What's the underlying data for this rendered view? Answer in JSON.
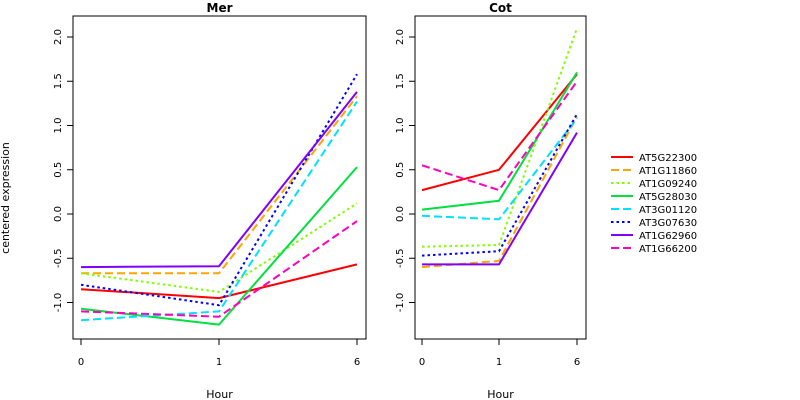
{
  "chart_data": [
    {
      "type": "line",
      "title": "Mer",
      "xlabel": "Hour",
      "ylabel": "centered expression",
      "x": [
        "0",
        "1",
        "6"
      ],
      "ylim": [
        -1.35,
        2.1
      ],
      "yticks": [
        "-1.0",
        "-0.5",
        "0.0",
        "0.5",
        "1.0",
        "1.5",
        "2.0"
      ],
      "series": [
        {
          "name": "AT5G22300",
          "values": [
            -0.85,
            -0.95,
            -0.57
          ],
          "color": "#ff0000",
          "dash": "solid"
        },
        {
          "name": "AT1G11860",
          "values": [
            -0.67,
            -0.67,
            1.33
          ],
          "color": "#ffa500",
          "dash": "dashed"
        },
        {
          "name": "AT1G09240",
          "values": [
            -0.67,
            -0.88,
            0.12
          ],
          "color": "#80ff00",
          "dash": "dotted"
        },
        {
          "name": "AT5G28030",
          "values": [
            -1.07,
            -1.25,
            0.53
          ],
          "color": "#00e040",
          "dash": "solid"
        },
        {
          "name": "AT3G01120",
          "values": [
            -1.2,
            -1.1,
            1.27
          ],
          "color": "#00e0ff",
          "dash": "dashed"
        },
        {
          "name": "AT3G07630",
          "values": [
            -0.8,
            -1.03,
            1.58
          ],
          "color": "#0000ff",
          "dash": "dotted"
        },
        {
          "name": "AT1G62960",
          "values": [
            -0.6,
            -0.59,
            1.38
          ],
          "color": "#8000ff",
          "dash": "solid"
        },
        {
          "name": "AT1G66200",
          "values": [
            -1.1,
            -1.16,
            -0.08
          ],
          "color": "#ff00c0",
          "dash": "dashed"
        }
      ]
    },
    {
      "type": "line",
      "title": "Cot",
      "xlabel": "Hour",
      "ylabel": "",
      "x": [
        "0",
        "1",
        "6"
      ],
      "ylim": [
        -1.35,
        2.1
      ],
      "yticks": [
        "-1.0",
        "-0.5",
        "0.0",
        "0.5",
        "1.0",
        "1.5",
        "2.0"
      ],
      "series": [
        {
          "name": "AT5G22300",
          "values": [
            0.27,
            0.5,
            1.58
          ],
          "color": "#ff0000",
          "dash": "solid"
        },
        {
          "name": "AT1G11860",
          "values": [
            -0.6,
            -0.53,
            1.1
          ],
          "color": "#ffa500",
          "dash": "dashed"
        },
        {
          "name": "AT1G09240",
          "values": [
            -0.37,
            -0.35,
            2.1
          ],
          "color": "#80ff00",
          "dash": "dotted"
        },
        {
          "name": "AT5G28030",
          "values": [
            0.05,
            0.15,
            1.6
          ],
          "color": "#00e040",
          "dash": "solid"
        },
        {
          "name": "AT3G01120",
          "values": [
            -0.02,
            -0.06,
            1.08
          ],
          "color": "#00e0ff",
          "dash": "dashed"
        },
        {
          "name": "AT3G07630",
          "values": [
            -0.47,
            -0.42,
            1.13
          ],
          "color": "#0000ff",
          "dash": "dotted"
        },
        {
          "name": "AT1G62960",
          "values": [
            -0.57,
            -0.57,
            0.92
          ],
          "color": "#8000ff",
          "dash": "solid"
        },
        {
          "name": "AT1G66200",
          "values": [
            0.55,
            0.27,
            1.5
          ],
          "color": "#ff00c0",
          "dash": "dashed"
        }
      ]
    }
  ],
  "legend": {
    "placement": "right",
    "entries": [
      "AT5G22300",
      "AT1G11860",
      "AT1G09240",
      "AT5G28030",
      "AT3G01120",
      "AT3G07630",
      "AT1G62960",
      "AT1G66200"
    ]
  }
}
